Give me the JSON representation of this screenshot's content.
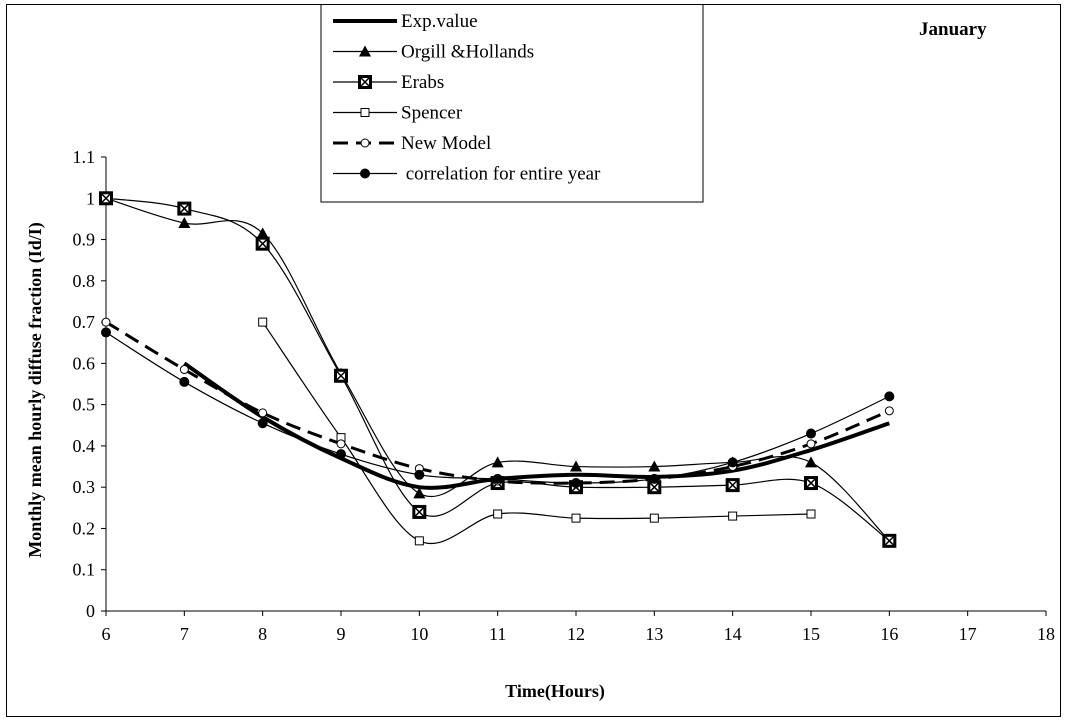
{
  "chart_data": {
    "type": "line",
    "title": "January",
    "xlabel": "Time(Hours)",
    "ylabel": "Monthly mean hourly diffuse fraction  (Id/I)",
    "xlim": [
      6,
      18
    ],
    "ylim": [
      0,
      1.1
    ],
    "x_ticks": [
      6,
      7,
      8,
      9,
      10,
      11,
      12,
      13,
      14,
      15,
      16,
      17,
      18
    ],
    "y_ticks": [
      "0",
      "0.1",
      "0.2",
      "0.3",
      "0.4",
      "0.5",
      "0.6",
      "0.7",
      "0.8",
      "0.9",
      "1",
      "1.1"
    ],
    "grid": false,
    "legend_position": "top-center",
    "series": [
      {
        "name": "Exp.value",
        "marker": "none",
        "line": "thick-solid",
        "x": [
          7,
          8,
          9,
          10,
          11,
          12,
          13,
          14,
          15,
          16
        ],
        "y": [
          0.6,
          0.47,
          0.37,
          0.3,
          0.32,
          0.33,
          0.325,
          0.34,
          0.39,
          0.455
        ]
      },
      {
        "name": "Orgill &Hollands",
        "marker": "triangle",
        "line": "thin-solid",
        "x": [
          6,
          7,
          8,
          9,
          10,
          11,
          12,
          13,
          14,
          15,
          16
        ],
        "y": [
          1.0,
          0.94,
          0.915,
          0.575,
          0.285,
          0.36,
          0.35,
          0.35,
          0.36,
          0.36,
          0.17
        ]
      },
      {
        "name": "Erabs",
        "marker": "boxed-x",
        "line": "thin-solid",
        "x": [
          6,
          7,
          8,
          9,
          10,
          11,
          12,
          13,
          14,
          15,
          16
        ],
        "y": [
          1.0,
          0.975,
          0.89,
          0.57,
          0.24,
          0.31,
          0.3,
          0.3,
          0.305,
          0.31,
          0.17
        ]
      },
      {
        "name": "Spencer",
        "marker": "open-square",
        "line": "thin-solid",
        "x": [
          8,
          9,
          10,
          11,
          12,
          13,
          14,
          15
        ],
        "y": [
          0.7,
          0.42,
          0.17,
          0.235,
          0.225,
          0.225,
          0.23,
          0.235
        ]
      },
      {
        "name": "New Model",
        "marker": "open-circle",
        "line": "thick-dashed",
        "x": [
          6,
          7,
          8,
          9,
          10,
          11,
          12,
          13,
          14,
          15,
          16
        ],
        "y": [
          0.7,
          0.585,
          0.48,
          0.405,
          0.345,
          0.315,
          0.31,
          0.32,
          0.35,
          0.405,
          0.485
        ]
      },
      {
        "name": " correlation for entire year",
        "marker": "filled-circle",
        "line": "thin-solid",
        "x": [
          6,
          7,
          8,
          9,
          10,
          11,
          12,
          13,
          14,
          15,
          16
        ],
        "y": [
          0.675,
          0.555,
          0.455,
          0.38,
          0.33,
          0.32,
          0.31,
          0.32,
          0.36,
          0.43,
          0.52
        ]
      }
    ]
  }
}
